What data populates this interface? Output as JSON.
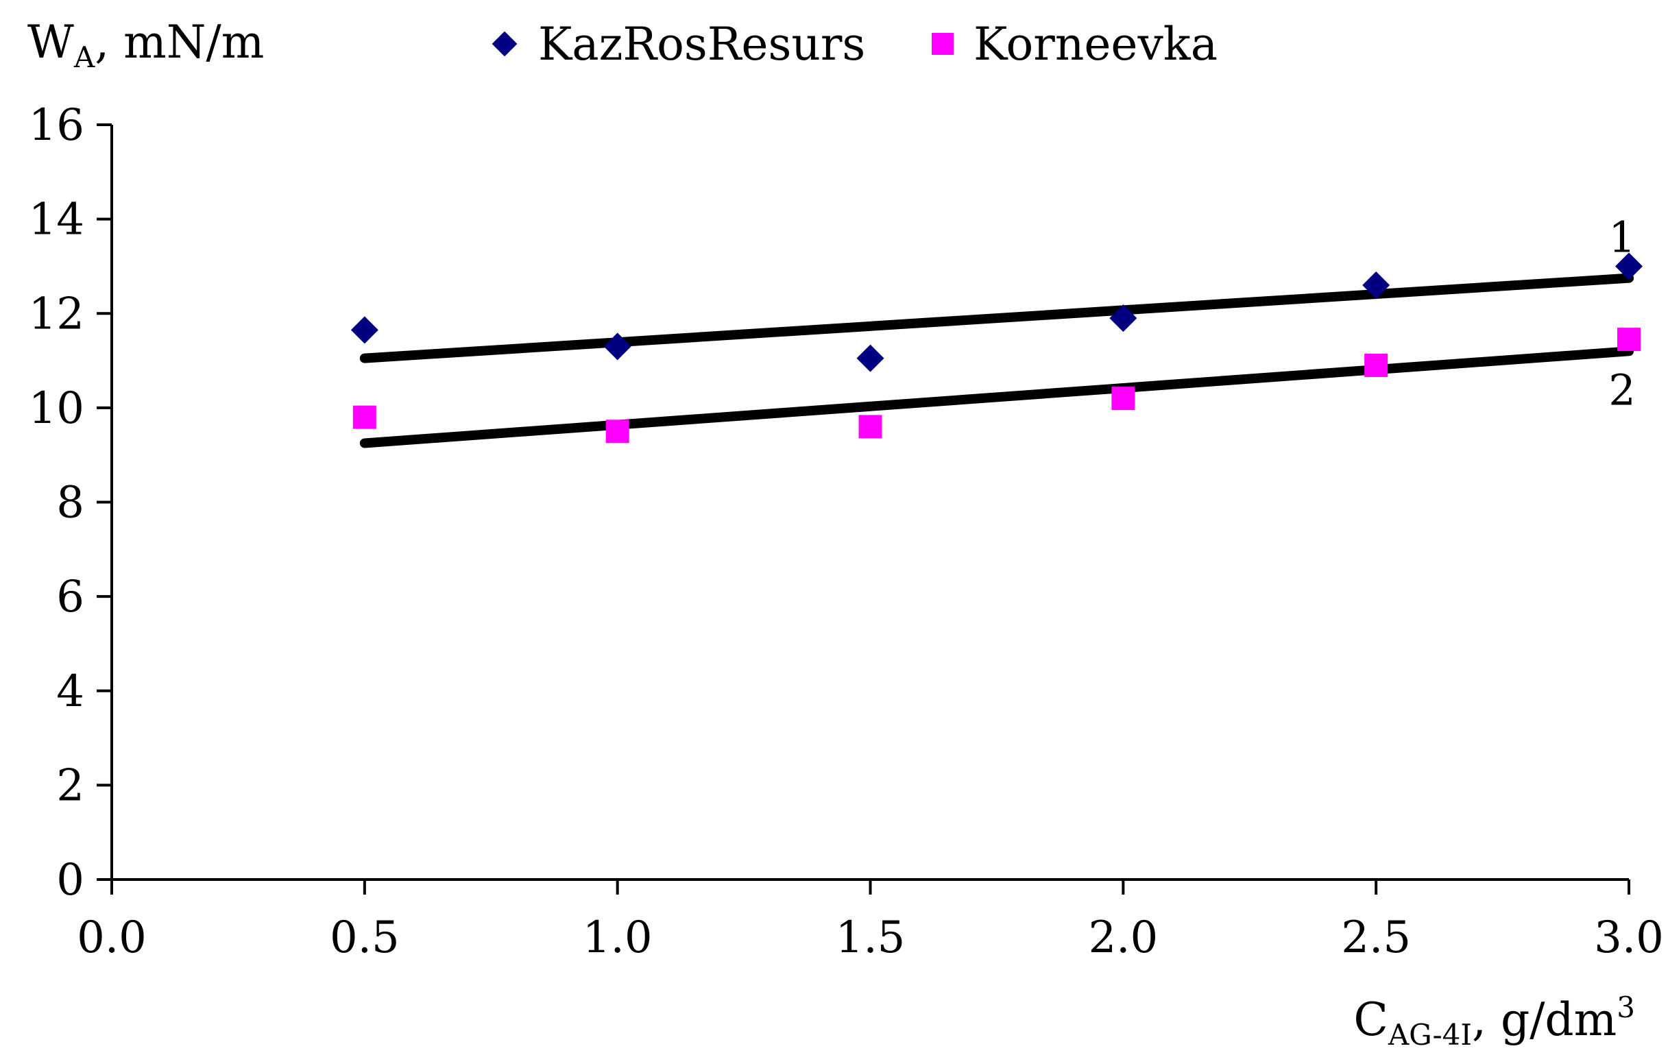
{
  "chart_data": {
    "type": "scatter",
    "ylabel_main": "W",
    "ylabel_sub": "A",
    "ylabel_rest": ", mN/m",
    "xlabel_main": "C",
    "xlabel_sub": "AG-4I",
    "xlabel_rest": ", g/dm",
    "xlabel_sup": "3",
    "xlim": [
      0,
      3
    ],
    "ylim": [
      0,
      16
    ],
    "x_ticks": [
      "0.0",
      "0.5",
      "1.0",
      "1.5",
      "2.0",
      "2.5",
      "3.0"
    ],
    "y_ticks": [
      "0",
      "2",
      "4",
      "6",
      "8",
      "10",
      "12",
      "14",
      "16"
    ],
    "grid": false,
    "legend_position": "top",
    "series": [
      {
        "name": "KazRosResurs",
        "marker": "diamond",
        "color": "#000080",
        "x": [
          0.5,
          1.0,
          1.5,
          2.0,
          2.5,
          3.0
        ],
        "y": [
          11.65,
          11.3,
          11.05,
          11.9,
          12.6,
          13.0
        ],
        "trendline": {
          "x": [
            0.5,
            3.0
          ],
          "y": [
            11.05,
            12.75
          ]
        },
        "curve_label": "1"
      },
      {
        "name": "Korneevka",
        "marker": "square",
        "color": "#ff00ff",
        "x": [
          0.5,
          1.0,
          1.5,
          2.0,
          2.5,
          3.0
        ],
        "y": [
          9.8,
          9.5,
          9.6,
          10.2,
          10.9,
          11.45
        ],
        "trendline": {
          "x": [
            0.5,
            3.0
          ],
          "y": [
            9.25,
            11.2
          ]
        },
        "curve_label": "2"
      }
    ]
  }
}
